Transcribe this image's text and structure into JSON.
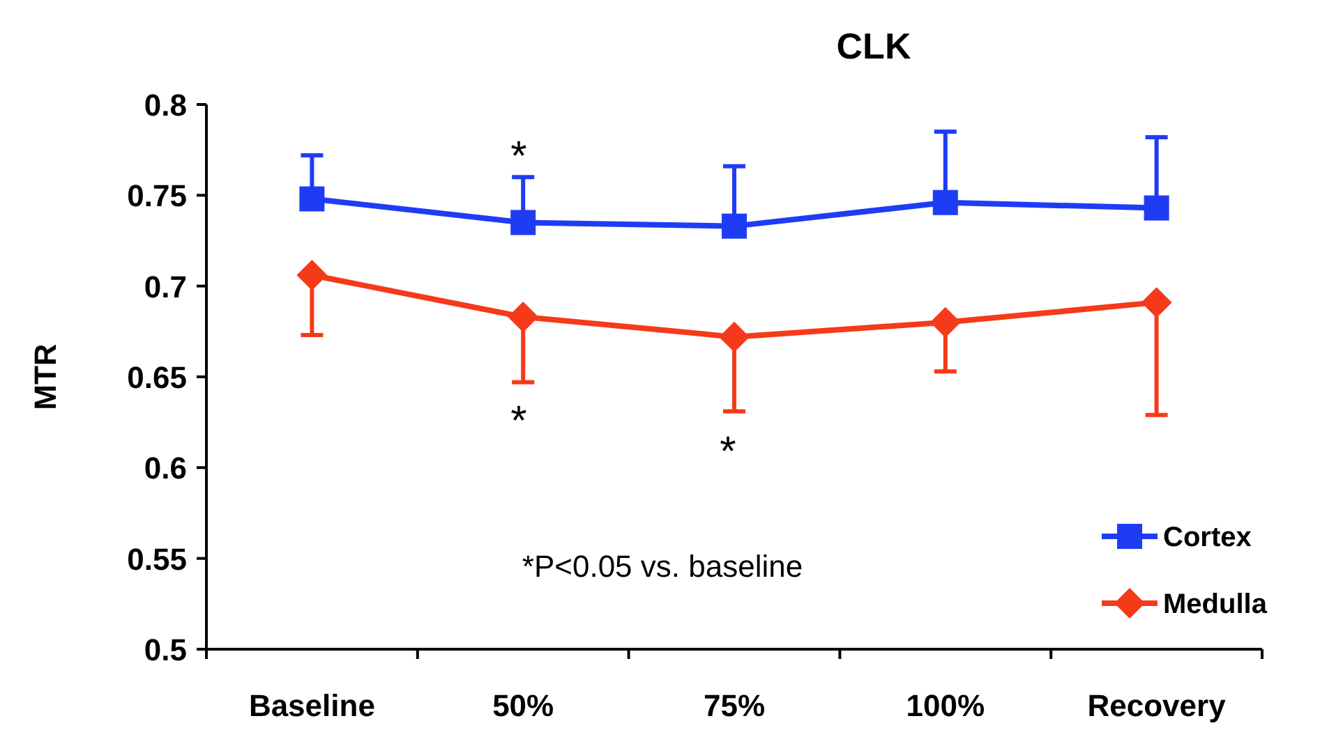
{
  "chart_data": {
    "type": "line",
    "title": "CLK",
    "ylabel": "MTR",
    "categories": [
      "Baseline",
      "50%",
      "75%",
      "100%",
      "Recovery"
    ],
    "series": [
      {
        "name": "Cortex",
        "color": "#1f3cf5",
        "marker": "square",
        "values": [
          0.748,
          0.735,
          0.733,
          0.746,
          0.743
        ],
        "errors": [
          [
            0.748,
            0.772
          ],
          [
            0.735,
            0.76
          ],
          [
            0.733,
            0.766
          ],
          [
            0.746,
            0.785
          ],
          [
            0.743,
            0.782
          ]
        ]
      },
      {
        "name": "Medulla",
        "color": "#f53a1a",
        "marker": "diamond",
        "values": [
          0.706,
          0.683,
          0.672,
          0.68,
          0.691
        ],
        "errors": [
          [
            0.673,
            0.706
          ],
          [
            0.647,
            0.683
          ],
          [
            0.631,
            0.672
          ],
          [
            0.653,
            0.68
          ],
          [
            0.629,
            0.691
          ]
        ]
      }
    ],
    "ylim": [
      0.5,
      0.8
    ],
    "yticks": [
      0.5,
      0.55,
      0.6,
      0.65,
      0.7,
      0.75,
      0.8
    ],
    "legend": "bottom right",
    "annotations": [
      "*",
      "*",
      "*",
      "*P<0.05 vs. baseline"
    ]
  }
}
